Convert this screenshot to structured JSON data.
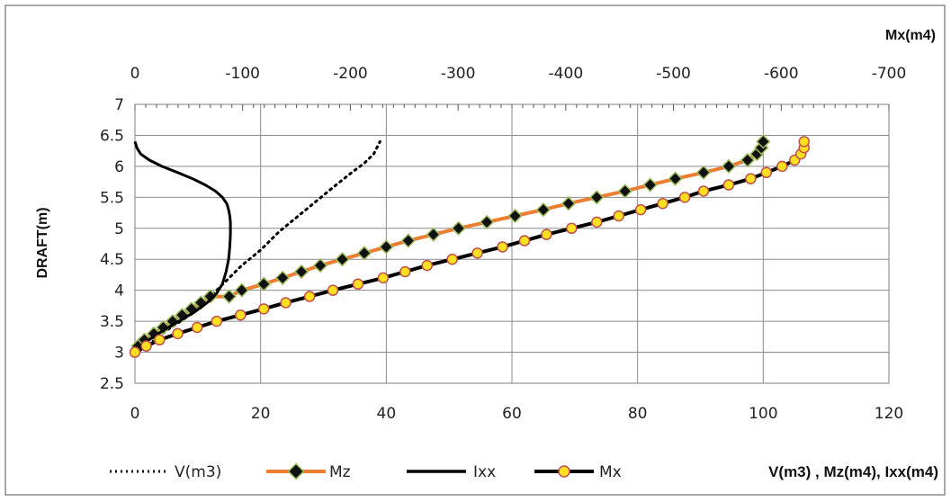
{
  "chart_data": {
    "type": "line",
    "ylabel": "DRAFT(m)",
    "xlabel_bottom": "V(m3) , Mz(m4), Ixx(m4)",
    "xlabel_top": "Mx(m4)",
    "x_bottom": {
      "range": [
        0,
        120
      ],
      "ticks": [
        0,
        20,
        40,
        60,
        80,
        100,
        120
      ]
    },
    "x_top": {
      "range": [
        0,
        -700
      ],
      "ticks": [
        0,
        -100,
        -200,
        -300,
        -400,
        -500,
        -600,
        -700
      ]
    },
    "y": {
      "range": [
        2.5,
        7
      ],
      "ticks": [
        2.5,
        3,
        3.5,
        4,
        4.5,
        5,
        5.5,
        6,
        6.5,
        7
      ]
    },
    "grid": true,
    "legend_position": "bottom",
    "colors": {
      "Mz_line": "#ED7D31",
      "marker_diamond": "#111111",
      "marker_diamond_edge": "#9BBB59",
      "marker_circle": "#FFE020",
      "marker_circle_edge": "#C0504D",
      "black": "#000000"
    },
    "series": [
      {
        "name": "V(m3)",
        "style": "dotted",
        "axis": "bottom",
        "points": [
          [
            0.5,
            3.0
          ],
          [
            2.5,
            3.15
          ],
          [
            5,
            3.35
          ],
          [
            8,
            3.55
          ],
          [
            11,
            3.8
          ],
          [
            14,
            4.1
          ],
          [
            17,
            4.4
          ],
          [
            20,
            4.65
          ],
          [
            23,
            4.95
          ],
          [
            26,
            5.2
          ],
          [
            29,
            5.45
          ],
          [
            32,
            5.7
          ],
          [
            34.5,
            5.9
          ],
          [
            36.5,
            6.05
          ],
          [
            38,
            6.2
          ],
          [
            39,
            6.4
          ]
        ]
      },
      {
        "name": "Mz",
        "style": "line-diamond",
        "axis": "bottom",
        "points": [
          [
            0.5,
            3.1
          ],
          [
            1.5,
            3.2
          ],
          [
            3,
            3.3
          ],
          [
            4.5,
            3.4
          ],
          [
            6,
            3.5
          ],
          [
            7.5,
            3.6
          ],
          [
            9,
            3.7
          ],
          [
            10.5,
            3.8
          ],
          [
            12,
            3.9
          ],
          [
            15,
            3.9
          ],
          [
            17,
            4.0
          ],
          [
            20.5,
            4.1
          ],
          [
            23.5,
            4.2
          ],
          [
            26.5,
            4.3
          ],
          [
            29.5,
            4.4
          ],
          [
            33,
            4.5
          ],
          [
            36.5,
            4.6
          ],
          [
            40,
            4.7
          ],
          [
            43.5,
            4.8
          ],
          [
            47.5,
            4.9
          ],
          [
            51.5,
            5.0
          ],
          [
            56,
            5.1
          ],
          [
            60.5,
            5.2
          ],
          [
            65,
            5.3
          ],
          [
            69,
            5.4
          ],
          [
            73.5,
            5.5
          ],
          [
            78,
            5.6
          ],
          [
            82,
            5.7
          ],
          [
            86,
            5.8
          ],
          [
            90.5,
            5.9
          ],
          [
            94.5,
            6.0
          ],
          [
            97.5,
            6.1
          ],
          [
            99,
            6.2
          ],
          [
            99.7,
            6.3
          ],
          [
            100,
            6.4
          ]
        ]
      },
      {
        "name": "Ixx",
        "style": "solid",
        "axis": "bottom",
        "points": [
          [
            0,
            6.4
          ],
          [
            0.3,
            6.3
          ],
          [
            0.9,
            6.2
          ],
          [
            2.3,
            6.1
          ],
          [
            4.3,
            6.0
          ],
          [
            6.8,
            5.9
          ],
          [
            9.2,
            5.8
          ],
          [
            11.2,
            5.7
          ],
          [
            12.8,
            5.6
          ],
          [
            13.9,
            5.5
          ],
          [
            14.6,
            5.4
          ],
          [
            14.9,
            5.3
          ],
          [
            15.1,
            5.2
          ],
          [
            15.2,
            5.1
          ],
          [
            15.2,
            4.9
          ],
          [
            15.1,
            4.7
          ],
          [
            14.9,
            4.5
          ],
          [
            14.5,
            4.3
          ],
          [
            13.9,
            4.1
          ],
          [
            13.0,
            3.95
          ],
          [
            11.5,
            3.8
          ],
          [
            9.5,
            3.65
          ],
          [
            7.0,
            3.5
          ],
          [
            4.5,
            3.35
          ],
          [
            2.2,
            3.2
          ],
          [
            0.8,
            3.1
          ],
          [
            0.3,
            3.0
          ]
        ]
      },
      {
        "name": "Mx",
        "style": "line-circle",
        "axis": "bottom",
        "points": [
          [
            0,
            3.0
          ],
          [
            1.8,
            3.1
          ],
          [
            3.9,
            3.2
          ],
          [
            6.8,
            3.3
          ],
          [
            9.9,
            3.4
          ],
          [
            13,
            3.5
          ],
          [
            16.8,
            3.6
          ],
          [
            20.5,
            3.7
          ],
          [
            24,
            3.8
          ],
          [
            27.8,
            3.9
          ],
          [
            31.5,
            4.0
          ],
          [
            35.5,
            4.1
          ],
          [
            39.5,
            4.2
          ],
          [
            43,
            4.3
          ],
          [
            46.5,
            4.4
          ],
          [
            50.5,
            4.5
          ],
          [
            54.5,
            4.6
          ],
          [
            58.5,
            4.7
          ],
          [
            62,
            4.8
          ],
          [
            65.5,
            4.9
          ],
          [
            69.5,
            5.0
          ],
          [
            73.5,
            5.1
          ],
          [
            77,
            5.2
          ],
          [
            80.5,
            5.3
          ],
          [
            84,
            5.4
          ],
          [
            87.5,
            5.5
          ],
          [
            90.5,
            5.6
          ],
          [
            94.5,
            5.7
          ],
          [
            98,
            5.8
          ],
          [
            100.5,
            5.9
          ],
          [
            103,
            6.0
          ],
          [
            105,
            6.1
          ],
          [
            106,
            6.2
          ],
          [
            106.5,
            6.3
          ],
          [
            106.5,
            6.4
          ]
        ]
      }
    ]
  }
}
